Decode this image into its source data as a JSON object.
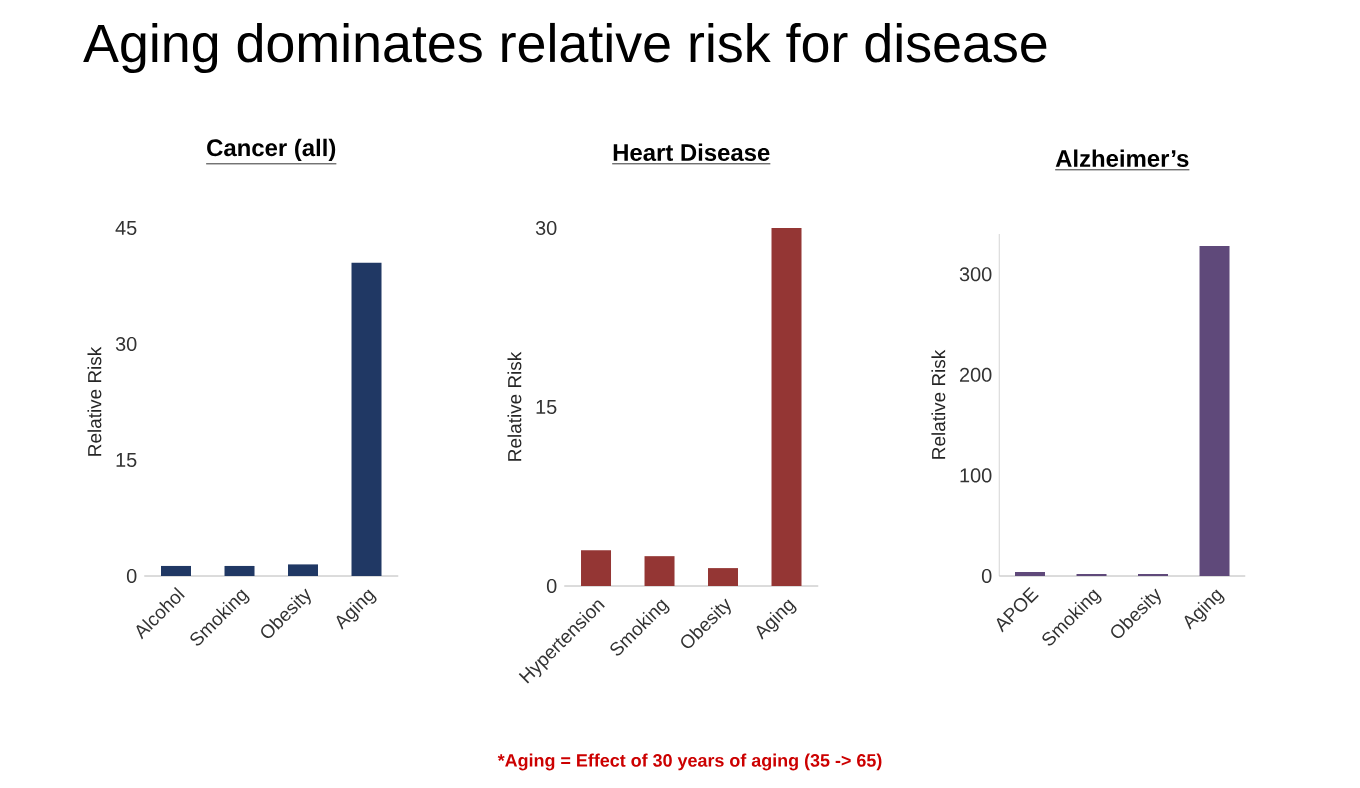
{
  "chart_data": [
    {
      "type": "other",
      "title": "Aging dominates relative risk for disease",
      "annotations": [
        "*Aging = Effect of 30 years of aging (35 -> 65)"
      ]
    },
    {
      "type": "bar",
      "title": "Cancer (all)",
      "ylabel": "Relative Risk",
      "categories": [
        "Alcohol",
        "Smoking",
        "Obesity",
        "Aging"
      ],
      "values": [
        1.3,
        1.3,
        1.5,
        40.5
      ],
      "color": "#203864",
      "ylim": [
        0,
        45
      ],
      "yticks": [
        0,
        15,
        30,
        45
      ],
      "grid": false,
      "legend": false
    },
    {
      "type": "bar",
      "title": "Heart Disease",
      "ylabel": "Relative Risk",
      "categories": [
        "Hypertension",
        "Smoking",
        "Obesity",
        "Aging"
      ],
      "values": [
        3,
        2.5,
        1.5,
        30
      ],
      "color": "#943634",
      "ylim": [
        0,
        30
      ],
      "yticks": [
        0,
        15,
        30
      ],
      "grid": false,
      "legend": false
    },
    {
      "type": "bar",
      "title": "Alzheimer’s",
      "ylabel": "Relative Risk",
      "categories": [
        "APOE",
        "Smoking",
        "Obesity",
        "Aging"
      ],
      "values": [
        4,
        2,
        2,
        328
      ],
      "color": "#5f497a",
      "ylim": [
        0,
        340
      ],
      "yticks": [
        0,
        100,
        200,
        300
      ],
      "grid": false,
      "legend": false
    }
  ]
}
